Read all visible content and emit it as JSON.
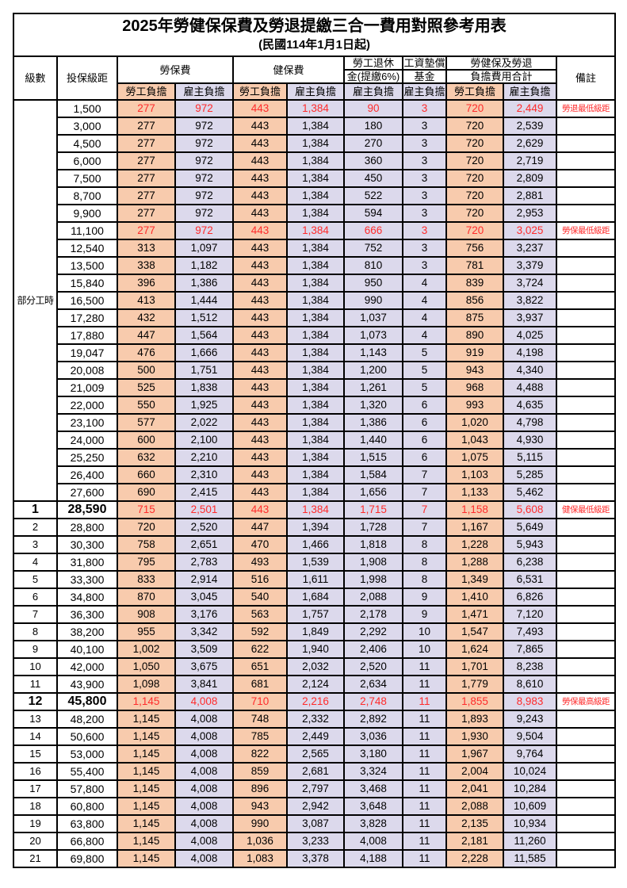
{
  "title": {
    "main": "2025年勞健保保費及勞退提繳三合一費用對照參考用表",
    "sub": "(民國114年1月1日起)"
  },
  "header": {
    "level": "級數",
    "bracket": "投保級距",
    "labor": "勞保費",
    "health": "健保費",
    "pension1": "勞工退休",
    "pension2": "金(提繳6%)",
    "fund1": "工資墊償",
    "fund2": "基金",
    "total1": "勞健保及勞退",
    "total2": "負擔費用合計",
    "remark": "備註",
    "sub": [
      "勞工負擔",
      "雇主負擔",
      "勞工負擔",
      "雇主負擔",
      "雇主負擔",
      "雇主負擔",
      "勞工負擔",
      "雇主負擔"
    ]
  },
  "part_time_label": "部分工時",
  "part_time_rowspan": 23,
  "colors": {
    "worker_bg": "#F8CBAD",
    "employer_bg": "#DCD9EC",
    "highlight_text": "#FF2B2B",
    "border": "#000000"
  },
  "rows": [
    {
      "level": null,
      "bracket": "1,500",
      "values": [
        "277",
        "972",
        "443",
        "1,384",
        "90",
        "3",
        "720",
        "2,449"
      ],
      "note": "勞退最低級距",
      "hl": true,
      "big": false
    },
    {
      "level": null,
      "bracket": "3,000",
      "values": [
        "277",
        "972",
        "443",
        "1,384",
        "180",
        "3",
        "720",
        "2,539"
      ],
      "note": "",
      "hl": false,
      "big": false
    },
    {
      "level": null,
      "bracket": "4,500",
      "values": [
        "277",
        "972",
        "443",
        "1,384",
        "270",
        "3",
        "720",
        "2,629"
      ],
      "note": "",
      "hl": false,
      "big": false
    },
    {
      "level": null,
      "bracket": "6,000",
      "values": [
        "277",
        "972",
        "443",
        "1,384",
        "360",
        "3",
        "720",
        "2,719"
      ],
      "note": "",
      "hl": false,
      "big": false
    },
    {
      "level": null,
      "bracket": "7,500",
      "values": [
        "277",
        "972",
        "443",
        "1,384",
        "450",
        "3",
        "720",
        "2,809"
      ],
      "note": "",
      "hl": false,
      "big": false
    },
    {
      "level": null,
      "bracket": "8,700",
      "values": [
        "277",
        "972",
        "443",
        "1,384",
        "522",
        "3",
        "720",
        "2,881"
      ],
      "note": "",
      "hl": false,
      "big": false
    },
    {
      "level": null,
      "bracket": "9,900",
      "values": [
        "277",
        "972",
        "443",
        "1,384",
        "594",
        "3",
        "720",
        "2,953"
      ],
      "note": "",
      "hl": false,
      "big": false
    },
    {
      "level": null,
      "bracket": "11,100",
      "values": [
        "277",
        "972",
        "443",
        "1,384",
        "666",
        "3",
        "720",
        "3,025"
      ],
      "note": "勞保最低級距",
      "hl": true,
      "big": false
    },
    {
      "level": null,
      "bracket": "12,540",
      "values": [
        "313",
        "1,097",
        "443",
        "1,384",
        "752",
        "3",
        "756",
        "3,237"
      ],
      "note": "",
      "hl": false,
      "big": false
    },
    {
      "level": null,
      "bracket": "13,500",
      "values": [
        "338",
        "1,182",
        "443",
        "1,384",
        "810",
        "3",
        "781",
        "3,379"
      ],
      "note": "",
      "hl": false,
      "big": false
    },
    {
      "level": null,
      "bracket": "15,840",
      "values": [
        "396",
        "1,386",
        "443",
        "1,384",
        "950",
        "4",
        "839",
        "3,724"
      ],
      "note": "",
      "hl": false,
      "big": false
    },
    {
      "level": null,
      "bracket": "16,500",
      "values": [
        "413",
        "1,444",
        "443",
        "1,384",
        "990",
        "4",
        "856",
        "3,822"
      ],
      "note": "",
      "hl": false,
      "big": false
    },
    {
      "level": null,
      "bracket": "17,280",
      "values": [
        "432",
        "1,512",
        "443",
        "1,384",
        "1,037",
        "4",
        "875",
        "3,937"
      ],
      "note": "",
      "hl": false,
      "big": false
    },
    {
      "level": null,
      "bracket": "17,880",
      "values": [
        "447",
        "1,564",
        "443",
        "1,384",
        "1,073",
        "4",
        "890",
        "4,025"
      ],
      "note": "",
      "hl": false,
      "big": false
    },
    {
      "level": null,
      "bracket": "19,047",
      "values": [
        "476",
        "1,666",
        "443",
        "1,384",
        "1,143",
        "5",
        "919",
        "4,198"
      ],
      "note": "",
      "hl": false,
      "big": false
    },
    {
      "level": null,
      "bracket": "20,008",
      "values": [
        "500",
        "1,751",
        "443",
        "1,384",
        "1,200",
        "5",
        "943",
        "4,340"
      ],
      "note": "",
      "hl": false,
      "big": false
    },
    {
      "level": null,
      "bracket": "21,009",
      "values": [
        "525",
        "1,838",
        "443",
        "1,384",
        "1,261",
        "5",
        "968",
        "4,488"
      ],
      "note": "",
      "hl": false,
      "big": false
    },
    {
      "level": null,
      "bracket": "22,000",
      "values": [
        "550",
        "1,925",
        "443",
        "1,384",
        "1,320",
        "6",
        "993",
        "4,635"
      ],
      "note": "",
      "hl": false,
      "big": false
    },
    {
      "level": null,
      "bracket": "23,100",
      "values": [
        "577",
        "2,022",
        "443",
        "1,384",
        "1,386",
        "6",
        "1,020",
        "4,798"
      ],
      "note": "",
      "hl": false,
      "big": false
    },
    {
      "level": null,
      "bracket": "24,000",
      "values": [
        "600",
        "2,100",
        "443",
        "1,384",
        "1,440",
        "6",
        "1,043",
        "4,930"
      ],
      "note": "",
      "hl": false,
      "big": false
    },
    {
      "level": null,
      "bracket": "25,250",
      "values": [
        "632",
        "2,210",
        "443",
        "1,384",
        "1,515",
        "6",
        "1,075",
        "5,115"
      ],
      "note": "",
      "hl": false,
      "big": false
    },
    {
      "level": null,
      "bracket": "26,400",
      "values": [
        "660",
        "2,310",
        "443",
        "1,384",
        "1,584",
        "7",
        "1,103",
        "5,285"
      ],
      "note": "",
      "hl": false,
      "big": false
    },
    {
      "level": null,
      "bracket": "27,600",
      "values": [
        "690",
        "2,415",
        "443",
        "1,384",
        "1,656",
        "7",
        "1,133",
        "5,462"
      ],
      "note": "",
      "hl": false,
      "big": false
    },
    {
      "level": "1",
      "bracket": "28,590",
      "values": [
        "715",
        "2,501",
        "443",
        "1,384",
        "1,715",
        "7",
        "1,158",
        "5,608"
      ],
      "note": "健保最低級距",
      "hl": true,
      "big": true
    },
    {
      "level": "2",
      "bracket": "28,800",
      "values": [
        "720",
        "2,520",
        "447",
        "1,394",
        "1,728",
        "7",
        "1,167",
        "5,649"
      ],
      "note": "",
      "hl": false,
      "big": false
    },
    {
      "level": "3",
      "bracket": "30,300",
      "values": [
        "758",
        "2,651",
        "470",
        "1,466",
        "1,818",
        "8",
        "1,228",
        "5,943"
      ],
      "note": "",
      "hl": false,
      "big": false
    },
    {
      "level": "4",
      "bracket": "31,800",
      "values": [
        "795",
        "2,783",
        "493",
        "1,539",
        "1,908",
        "8",
        "1,288",
        "6,238"
      ],
      "note": "",
      "hl": false,
      "big": false
    },
    {
      "level": "5",
      "bracket": "33,300",
      "values": [
        "833",
        "2,914",
        "516",
        "1,611",
        "1,998",
        "8",
        "1,349",
        "6,531"
      ],
      "note": "",
      "hl": false,
      "big": false
    },
    {
      "level": "6",
      "bracket": "34,800",
      "values": [
        "870",
        "3,045",
        "540",
        "1,684",
        "2,088",
        "9",
        "1,410",
        "6,826"
      ],
      "note": "",
      "hl": false,
      "big": false
    },
    {
      "level": "7",
      "bracket": "36,300",
      "values": [
        "908",
        "3,176",
        "563",
        "1,757",
        "2,178",
        "9",
        "1,471",
        "7,120"
      ],
      "note": "",
      "hl": false,
      "big": false
    },
    {
      "level": "8",
      "bracket": "38,200",
      "values": [
        "955",
        "3,342",
        "592",
        "1,849",
        "2,292",
        "10",
        "1,547",
        "7,493"
      ],
      "note": "",
      "hl": false,
      "big": false
    },
    {
      "level": "9",
      "bracket": "40,100",
      "values": [
        "1,002",
        "3,509",
        "622",
        "1,940",
        "2,406",
        "10",
        "1,624",
        "7,865"
      ],
      "note": "",
      "hl": false,
      "big": false
    },
    {
      "level": "10",
      "bracket": "42,000",
      "values": [
        "1,050",
        "3,675",
        "651",
        "2,032",
        "2,520",
        "11",
        "1,701",
        "8,238"
      ],
      "note": "",
      "hl": false,
      "big": false
    },
    {
      "level": "11",
      "bracket": "43,900",
      "values": [
        "1,098",
        "3,841",
        "681",
        "2,124",
        "2,634",
        "11",
        "1,779",
        "8,610"
      ],
      "note": "",
      "hl": false,
      "big": false
    },
    {
      "level": "12",
      "bracket": "45,800",
      "values": [
        "1,145",
        "4,008",
        "710",
        "2,216",
        "2,748",
        "11",
        "1,855",
        "8,983"
      ],
      "note": "勞保最高級距",
      "hl": true,
      "big": true
    },
    {
      "level": "13",
      "bracket": "48,200",
      "values": [
        "1,145",
        "4,008",
        "748",
        "2,332",
        "2,892",
        "11",
        "1,893",
        "9,243"
      ],
      "note": "",
      "hl": false,
      "big": false
    },
    {
      "level": "14",
      "bracket": "50,600",
      "values": [
        "1,145",
        "4,008",
        "785",
        "2,449",
        "3,036",
        "11",
        "1,930",
        "9,504"
      ],
      "note": "",
      "hl": false,
      "big": false
    },
    {
      "level": "15",
      "bracket": "53,000",
      "values": [
        "1,145",
        "4,008",
        "822",
        "2,565",
        "3,180",
        "11",
        "1,967",
        "9,764"
      ],
      "note": "",
      "hl": false,
      "big": false
    },
    {
      "level": "16",
      "bracket": "55,400",
      "values": [
        "1,145",
        "4,008",
        "859",
        "2,681",
        "3,324",
        "11",
        "2,004",
        "10,024"
      ],
      "note": "",
      "hl": false,
      "big": false
    },
    {
      "level": "17",
      "bracket": "57,800",
      "values": [
        "1,145",
        "4,008",
        "896",
        "2,797",
        "3,468",
        "11",
        "2,041",
        "10,284"
      ],
      "note": "",
      "hl": false,
      "big": false
    },
    {
      "level": "18",
      "bracket": "60,800",
      "values": [
        "1,145",
        "4,008",
        "943",
        "2,942",
        "3,648",
        "11",
        "2,088",
        "10,609"
      ],
      "note": "",
      "hl": false,
      "big": false
    },
    {
      "level": "19",
      "bracket": "63,800",
      "values": [
        "1,145",
        "4,008",
        "990",
        "3,087",
        "3,828",
        "11",
        "2,135",
        "10,934"
      ],
      "note": "",
      "hl": false,
      "big": false
    },
    {
      "level": "20",
      "bracket": "66,800",
      "values": [
        "1,145",
        "4,008",
        "1,036",
        "3,233",
        "4,008",
        "11",
        "2,181",
        "11,260"
      ],
      "note": "",
      "hl": false,
      "big": false
    },
    {
      "level": "21",
      "bracket": "69,800",
      "values": [
        "1,145",
        "4,008",
        "1,083",
        "3,378",
        "4,188",
        "11",
        "2,228",
        "11,585"
      ],
      "note": "",
      "hl": false,
      "big": false
    }
  ]
}
